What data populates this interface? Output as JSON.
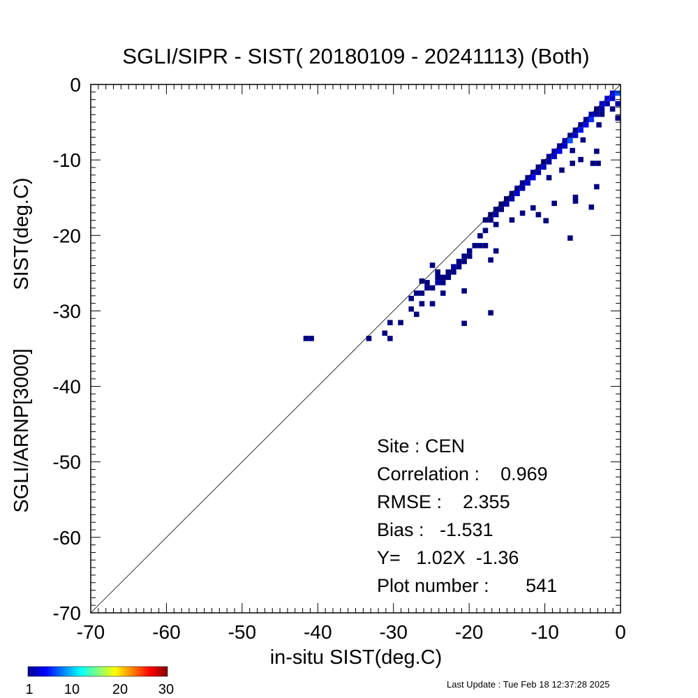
{
  "chart_data": {
    "type": "heatmap",
    "title": "SGLI/SIPR - SIST( 20180109 - 20241113) (Both)",
    "xlabel": "in-situ SIST(deg.C)",
    "ylabel_lines": [
      "SGLI/ARNP[3000]",
      "SIST(deg.C)"
    ],
    "xlim": [
      -70,
      0
    ],
    "ylim": [
      -70,
      0
    ],
    "x_ticks": [
      -70,
      -60,
      -50,
      -40,
      -30,
      -20,
      -10,
      0
    ],
    "y_ticks": [
      0,
      -10,
      -20,
      -30,
      -40,
      -50,
      -60,
      -70
    ],
    "x_tick_labels": [
      "-70",
      "-60",
      "-50",
      "-40",
      "-30",
      "-20",
      "-10",
      "0"
    ],
    "y_tick_labels": [
      "0",
      "-10",
      "-20",
      "-30",
      "-40",
      "-50",
      "-60",
      "-70"
    ],
    "one_to_one_line": true,
    "bin_size": 0.7,
    "count_scale": {
      "min": 1,
      "max": 30,
      "ticks": [
        "1",
        "10",
        "20",
        "30"
      ],
      "colormap": "jet"
    },
    "cells": [
      {
        "x": -0.35,
        "y": -1.15,
        "count": 7
      },
      {
        "x": -1.05,
        "y": -1.15,
        "count": 5
      },
      {
        "x": -1.05,
        "y": -1.85,
        "count": 3
      },
      {
        "x": -1.75,
        "y": -1.85,
        "count": 5
      },
      {
        "x": -1.75,
        "y": -2.55,
        "count": 2
      },
      {
        "x": -2.45,
        "y": -2.55,
        "count": 4
      },
      {
        "x": -2.45,
        "y": -3.25,
        "count": 2
      },
      {
        "x": -3.15,
        "y": -3.25,
        "count": 1
      },
      {
        "x": -3.15,
        "y": -3.95,
        "count": 2
      },
      {
        "x": -3.85,
        "y": -3.95,
        "count": 3
      },
      {
        "x": -3.85,
        "y": -4.65,
        "count": 6
      },
      {
        "x": -4.55,
        "y": -4.65,
        "count": 2
      },
      {
        "x": -4.55,
        "y": -5.35,
        "count": 4
      },
      {
        "x": -5.25,
        "y": -5.35,
        "count": 2
      },
      {
        "x": -5.25,
        "y": -6.05,
        "count": 5
      },
      {
        "x": -5.95,
        "y": -6.05,
        "count": 2
      },
      {
        "x": -5.95,
        "y": -6.75,
        "count": 3
      },
      {
        "x": -6.65,
        "y": -6.75,
        "count": 2
      },
      {
        "x": -6.65,
        "y": -7.45,
        "count": 7
      },
      {
        "x": -7.35,
        "y": -7.45,
        "count": 3
      },
      {
        "x": -7.35,
        "y": -8.15,
        "count": 3
      },
      {
        "x": -8.05,
        "y": -8.15,
        "count": 2
      },
      {
        "x": -8.05,
        "y": -8.85,
        "count": 4
      },
      {
        "x": -8.75,
        "y": -8.85,
        "count": 3
      },
      {
        "x": -8.75,
        "y": -9.55,
        "count": 3
      },
      {
        "x": -9.45,
        "y": -9.55,
        "count": 2
      },
      {
        "x": -9.45,
        "y": -10.25,
        "count": 2
      },
      {
        "x": -10.15,
        "y": -10.25,
        "count": 1
      },
      {
        "x": -10.15,
        "y": -10.95,
        "count": 3
      },
      {
        "x": -10.85,
        "y": -10.95,
        "count": 2
      },
      {
        "x": -10.85,
        "y": -11.65,
        "count": 2
      },
      {
        "x": -11.55,
        "y": -11.65,
        "count": 2
      },
      {
        "x": -11.55,
        "y": -12.35,
        "count": 4
      },
      {
        "x": -12.25,
        "y": -12.35,
        "count": 2
      },
      {
        "x": -12.25,
        "y": -13.05,
        "count": 3
      },
      {
        "x": -12.95,
        "y": -13.05,
        "count": 2
      },
      {
        "x": -12.95,
        "y": -13.75,
        "count": 2
      },
      {
        "x": -13.65,
        "y": -13.75,
        "count": 2
      },
      {
        "x": -13.65,
        "y": -14.45,
        "count": 3
      },
      {
        "x": -14.35,
        "y": -14.45,
        "count": 1
      },
      {
        "x": -14.35,
        "y": -15.15,
        "count": 2
      },
      {
        "x": -15.05,
        "y": -15.15,
        "count": 1
      },
      {
        "x": -15.05,
        "y": -15.85,
        "count": 2
      },
      {
        "x": -15.75,
        "y": -15.85,
        "count": 1
      },
      {
        "x": -15.75,
        "y": -16.55,
        "count": 1
      },
      {
        "x": -16.45,
        "y": -16.55,
        "count": 1
      },
      {
        "x": -16.45,
        "y": -17.25,
        "count": 2
      },
      {
        "x": -17.15,
        "y": -17.25,
        "count": 1
      },
      {
        "x": -17.15,
        "y": -17.95,
        "count": 1
      },
      {
        "x": -17.85,
        "y": -17.95,
        "count": 1
      },
      {
        "x": -0.35,
        "y": -2.55,
        "count": 2
      },
      {
        "x": -1.05,
        "y": -3.25,
        "count": 1
      },
      {
        "x": -2.45,
        "y": -3.95,
        "count": 1
      },
      {
        "x": -0.35,
        "y": -4.45,
        "count": 1
      },
      {
        "x": -2.85,
        "y": -5.35,
        "count": 1
      },
      {
        "x": -4.95,
        "y": -7.35,
        "count": 1
      },
      {
        "x": -6.35,
        "y": -8.75,
        "count": 1
      },
      {
        "x": -3.15,
        "y": -8.85,
        "count": 1
      },
      {
        "x": -3.65,
        "y": -10.45,
        "count": 1
      },
      {
        "x": -2.95,
        "y": -10.45,
        "count": 1
      },
      {
        "x": -5.25,
        "y": -9.95,
        "count": 1
      },
      {
        "x": -6.35,
        "y": -10.45,
        "count": 1
      },
      {
        "x": -7.75,
        "y": -11.35,
        "count": 1
      },
      {
        "x": -9.45,
        "y": -12.35,
        "count": 1
      },
      {
        "x": -3.15,
        "y": -13.55,
        "count": 1
      },
      {
        "x": -5.95,
        "y": -14.95,
        "count": 1
      },
      {
        "x": -5.95,
        "y": -15.45,
        "count": 1
      },
      {
        "x": -8.75,
        "y": -15.75,
        "count": 1
      },
      {
        "x": -3.85,
        "y": -16.25,
        "count": 1
      },
      {
        "x": -11.55,
        "y": -16.35,
        "count": 1
      },
      {
        "x": -10.85,
        "y": -17.25,
        "count": 1
      },
      {
        "x": -12.95,
        "y": -17.05,
        "count": 1
      },
      {
        "x": -14.35,
        "y": -17.95,
        "count": 1
      },
      {
        "x": -9.85,
        "y": -18.05,
        "count": 1
      },
      {
        "x": -16.45,
        "y": -18.55,
        "count": 1
      },
      {
        "x": -6.65,
        "y": -20.35,
        "count": 1
      },
      {
        "x": -17.85,
        "y": -19.35,
        "count": 1
      },
      {
        "x": -18.55,
        "y": -20.05,
        "count": 1
      },
      {
        "x": -19.25,
        "y": -21.35,
        "count": 1
      },
      {
        "x": -18.55,
        "y": -21.35,
        "count": 1
      },
      {
        "x": -17.85,
        "y": -21.35,
        "count": 1
      },
      {
        "x": -16.45,
        "y": -22.05,
        "count": 1
      },
      {
        "x": -19.95,
        "y": -22.05,
        "count": 1
      },
      {
        "x": -20.65,
        "y": -22.75,
        "count": 1
      },
      {
        "x": -19.95,
        "y": -22.75,
        "count": 1
      },
      {
        "x": -21.35,
        "y": -23.45,
        "count": 1
      },
      {
        "x": -20.65,
        "y": -23.45,
        "count": 1
      },
      {
        "x": -17.15,
        "y": -23.25,
        "count": 1
      },
      {
        "x": -22.05,
        "y": -24.15,
        "count": 2
      },
      {
        "x": -21.35,
        "y": -24.15,
        "count": 1
      },
      {
        "x": -22.75,
        "y": -24.85,
        "count": 1
      },
      {
        "x": -22.05,
        "y": -24.85,
        "count": 1
      },
      {
        "x": -23.45,
        "y": -25.55,
        "count": 1
      },
      {
        "x": -22.75,
        "y": -25.55,
        "count": 1
      },
      {
        "x": -24.15,
        "y": -26.25,
        "count": 2
      },
      {
        "x": -23.45,
        "y": -26.25,
        "count": 1
      },
      {
        "x": -24.85,
        "y": -26.95,
        "count": 1
      },
      {
        "x": -25.55,
        "y": -26.95,
        "count": 1
      },
      {
        "x": -24.15,
        "y": -25.55,
        "count": 1
      },
      {
        "x": -24.85,
        "y": -23.95,
        "count": 1
      },
      {
        "x": -24.15,
        "y": -24.85,
        "count": 1
      },
      {
        "x": -26.25,
        "y": -27.65,
        "count": 1
      },
      {
        "x": -26.95,
        "y": -27.65,
        "count": 1
      },
      {
        "x": -25.55,
        "y": -26.25,
        "count": 1
      },
      {
        "x": -27.65,
        "y": -28.35,
        "count": 1
      },
      {
        "x": -26.25,
        "y": -26.05,
        "count": 1
      },
      {
        "x": -23.45,
        "y": -27.65,
        "count": 1
      },
      {
        "x": -20.65,
        "y": -27.35,
        "count": 1
      },
      {
        "x": -26.25,
        "y": -29.05,
        "count": 1
      },
      {
        "x": -24.85,
        "y": -29.05,
        "count": 1
      },
      {
        "x": -27.65,
        "y": -29.75,
        "count": 1
      },
      {
        "x": -26.95,
        "y": -30.45,
        "count": 1
      },
      {
        "x": -17.15,
        "y": -30.25,
        "count": 1
      },
      {
        "x": -30.45,
        "y": -31.55,
        "count": 1
      },
      {
        "x": -29.05,
        "y": -31.55,
        "count": 1
      },
      {
        "x": -20.65,
        "y": -31.65,
        "count": 1
      },
      {
        "x": -31.15,
        "y": -32.95,
        "count": 1
      },
      {
        "x": -30.45,
        "y": -33.65,
        "count": 1
      },
      {
        "x": -33.25,
        "y": -33.65,
        "count": 1
      },
      {
        "x": -40.85,
        "y": -33.65,
        "count": 1
      },
      {
        "x": -41.55,
        "y": -33.65,
        "count": 1
      }
    ]
  },
  "stats": {
    "site": "Site : CEN",
    "correlation": "Correlation :    0.969",
    "rmse": "RMSE :    2.355",
    "bias": "Bias :   -1.531",
    "regression": "Y=   1.02X  -1.36",
    "plot_number": "Plot number :       541"
  },
  "last_update": "Last Update : Tue Feb 18 12:37:28 2025"
}
